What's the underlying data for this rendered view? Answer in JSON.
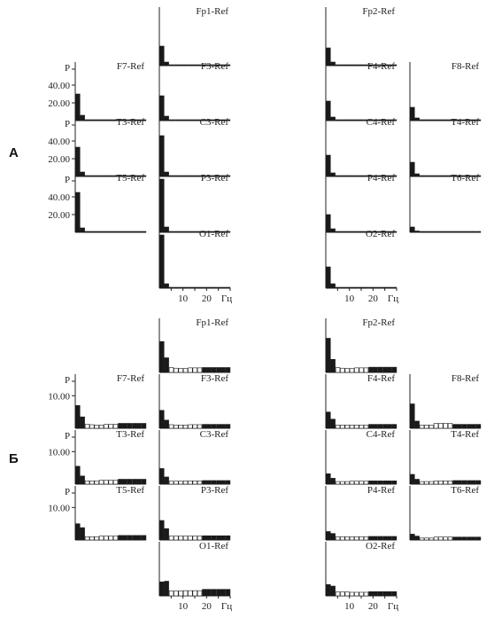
{
  "panels": {
    "A": {
      "label": "А",
      "y_axis_label": "P",
      "x_unit": "Гц",
      "x_ticks": [
        "10",
        "20"
      ],
      "y_ticks": [
        "40.00",
        "20.00"
      ]
    },
    "B": {
      "label": "Б",
      "y_axis_label": "P",
      "x_unit": "Гц",
      "x_ticks": [
        "10",
        "20"
      ],
      "y_ticks": [
        "10.00"
      ]
    }
  },
  "chart_data": [
    {
      "panel": "A",
      "type": "bar",
      "title": "",
      "xlabel": "Гц",
      "ylabel": "P",
      "ylim": [
        0,
        60
      ],
      "bin_hz": [
        2,
        4,
        6,
        8,
        10,
        12,
        14,
        16,
        18,
        20,
        22,
        24,
        26,
        28,
        30
      ],
      "band_fills": [
        "black",
        "black",
        "black",
        "black",
        "black",
        "black",
        "black",
        "black",
        "black",
        "black",
        "black",
        "black",
        "black",
        "black",
        "black"
      ],
      "channels": [
        {
          "name": "Fp1-Ref",
          "values": [
            22,
            4,
            1,
            0.5,
            0.5,
            0.5,
            0.5,
            0.5,
            0.5,
            0.5,
            0.5,
            0.5,
            0.5,
            0.5,
            0.5
          ]
        },
        {
          "name": "Fp2-Ref",
          "values": [
            20,
            4,
            1,
            1,
            0.5,
            0.5,
            0.5,
            0.5,
            0.5,
            0.5,
            0.5,
            0.5,
            0.5,
            0.5,
            0.5
          ]
        },
        {
          "name": "F7-Ref",
          "values": [
            30,
            6,
            1,
            0.5,
            0.5,
            0.5,
            0.5,
            0.5,
            0.5,
            0.5,
            0.5,
            0.5,
            0.5,
            0.5,
            0.5
          ]
        },
        {
          "name": "F3-Ref",
          "values": [
            28,
            5,
            1,
            0.5,
            0.5,
            0.5,
            0.5,
            0.5,
            0.5,
            0.5,
            0.5,
            0.5,
            0.5,
            0.5,
            0.5
          ]
        },
        {
          "name": "F4-Ref",
          "values": [
            22,
            4,
            1,
            0.5,
            0.5,
            0.5,
            0.5,
            0.5,
            0.5,
            0.5,
            0.5,
            0.5,
            0.5,
            0.5,
            0.5
          ]
        },
        {
          "name": "F8-Ref",
          "values": [
            15,
            3,
            1,
            0.5,
            0.5,
            0.5,
            0.5,
            0.5,
            0.5,
            0.5,
            0.5,
            0.5,
            0.5,
            0.5,
            0.5
          ]
        },
        {
          "name": "T3-Ref",
          "values": [
            33,
            5,
            1,
            0.5,
            0.5,
            0.5,
            0.5,
            0.5,
            0.5,
            0.5,
            0.5,
            0.5,
            0.5,
            0.5,
            0.5
          ]
        },
        {
          "name": "C3-Ref",
          "values": [
            46,
            5,
            1,
            0.5,
            0.5,
            0.5,
            0.5,
            0.5,
            0.5,
            0.5,
            0.5,
            0.5,
            0.5,
            0.5,
            0.5
          ]
        },
        {
          "name": "C4-Ref",
          "values": [
            24,
            4,
            1,
            0.5,
            0.5,
            0.5,
            0.5,
            0.5,
            0.5,
            0.5,
            0.5,
            0.5,
            0.5,
            0.5,
            0.5
          ]
        },
        {
          "name": "T4-Ref",
          "values": [
            16,
            3,
            1,
            0.5,
            0.5,
            0.5,
            0.5,
            0.5,
            0.5,
            0.5,
            0.5,
            0.5,
            0.5,
            0.5,
            0.5
          ]
        },
        {
          "name": "T5-Ref",
          "values": [
            45,
            5,
            1,
            0.5,
            0.5,
            0.5,
            0.5,
            0.5,
            0.5,
            0.5,
            0.5,
            0.5,
            0.5,
            0.5,
            0.5
          ]
        },
        {
          "name": "P3-Ref",
          "values": [
            60,
            6,
            1,
            0.5,
            0.5,
            0.5,
            0.5,
            0.5,
            0.5,
            0.5,
            0.5,
            0.5,
            0.5,
            0.5,
            0.5
          ]
        },
        {
          "name": "P4-Ref",
          "values": [
            20,
            4,
            1,
            0.5,
            0.5,
            0.5,
            0.5,
            0.5,
            0.5,
            0.5,
            0.5,
            0.5,
            0.5,
            0.5,
            0.5
          ]
        },
        {
          "name": "T6-Ref",
          "values": [
            6,
            1.5,
            1,
            0.5,
            0.5,
            0.5,
            0.5,
            0.5,
            0.5,
            0.5,
            0.5,
            0.5,
            0.5,
            0.5,
            0.5
          ]
        },
        {
          "name": "O1-Ref",
          "values": [
            60,
            5,
            1,
            0.5,
            0.5,
            0.5,
            0.5,
            0.5,
            0.5,
            0.5,
            0.5,
            0.5,
            0.5,
            0.5,
            0.5
          ]
        },
        {
          "name": "O2-Ref",
          "values": [
            24,
            5,
            1,
            0.5,
            0.5,
            0.5,
            0.5,
            0.5,
            0.5,
            0.5,
            0.5,
            0.5,
            0.5,
            0.5,
            0.5
          ]
        }
      ]
    },
    {
      "panel": "B",
      "type": "bar",
      "title": "",
      "xlabel": "Гц",
      "ylabel": "P",
      "ylim": [
        0,
        15
      ],
      "bin_hz": [
        2,
        4,
        6,
        8,
        10,
        12,
        14,
        16,
        18,
        20,
        22,
        24,
        26,
        28,
        30
      ],
      "band_fills": [
        "black",
        "black",
        "white",
        "white",
        "white",
        "white",
        "white",
        "white",
        "white",
        "black",
        "black",
        "black",
        "black",
        "black",
        "black"
      ],
      "channels": [
        {
          "name": "Fp1-Ref",
          "values": [
            9.5,
            4.5,
            1.5,
            1.3,
            1.2,
            1.2,
            1.4,
            1.4,
            1.4,
            1.5,
            1.5,
            1.5,
            1.5,
            1.5,
            1.5
          ]
        },
        {
          "name": "Fp2-Ref",
          "values": [
            10.5,
            4.0,
            1.5,
            1.3,
            1.2,
            1.2,
            1.4,
            1.4,
            1.4,
            1.6,
            1.6,
            1.6,
            1.6,
            1.6,
            1.6
          ]
        },
        {
          "name": "F7-Ref",
          "values": [
            7.0,
            3.5,
            1.2,
            1.1,
            1.0,
            1.0,
            1.2,
            1.2,
            1.2,
            1.5,
            1.5,
            1.5,
            1.5,
            1.5,
            1.5
          ]
        },
        {
          "name": "F3-Ref",
          "values": [
            5.5,
            2.5,
            1.1,
            1.0,
            1.0,
            1.0,
            1.1,
            1.1,
            1.1,
            1.2,
            1.2,
            1.2,
            1.2,
            1.2,
            1.2
          ]
        },
        {
          "name": "F4-Ref",
          "values": [
            5.0,
            2.8,
            1.0,
            1.0,
            1.0,
            1.0,
            1.0,
            1.0,
            1.0,
            1.2,
            1.2,
            1.2,
            1.2,
            1.2,
            1.2
          ]
        },
        {
          "name": "F8-Ref",
          "values": [
            7.5,
            2.2,
            1.0,
            1.0,
            1.0,
            1.5,
            1.5,
            1.5,
            1.5,
            1.2,
            1.2,
            1.2,
            1.2,
            1.2,
            1.2
          ]
        },
        {
          "name": "T3-Ref",
          "values": [
            5.5,
            2.5,
            1.0,
            1.0,
            1.0,
            1.2,
            1.2,
            1.2,
            1.2,
            1.5,
            1.5,
            1.5,
            1.5,
            1.5,
            1.5
          ]
        },
        {
          "name": "C3-Ref",
          "values": [
            4.8,
            2.2,
            0.9,
            0.9,
            0.9,
            1.0,
            1.0,
            1.0,
            1.0,
            1.1,
            1.1,
            1.1,
            1.1,
            1.1,
            1.1
          ]
        },
        {
          "name": "C4-Ref",
          "values": [
            3.2,
            1.8,
            0.8,
            0.8,
            0.8,
            0.9,
            0.9,
            0.9,
            0.9,
            1.0,
            1.0,
            1.0,
            1.0,
            1.0,
            1.0
          ]
        },
        {
          "name": "T4-Ref",
          "values": [
            3.0,
            1.5,
            0.8,
            0.8,
            0.8,
            1.0,
            1.0,
            1.0,
            1.0,
            1.1,
            1.1,
            1.1,
            1.1,
            1.1,
            1.1
          ]
        },
        {
          "name": "T5-Ref",
          "values": [
            5.0,
            3.8,
            1.0,
            1.0,
            1.0,
            1.2,
            1.2,
            1.2,
            1.2,
            1.4,
            1.4,
            1.4,
            1.4,
            1.4,
            1.4
          ]
        },
        {
          "name": "P3-Ref",
          "values": [
            6.0,
            3.5,
            1.2,
            1.2,
            1.2,
            1.2,
            1.2,
            1.2,
            1.2,
            1.3,
            1.3,
            1.3,
            1.3,
            1.3,
            1.3
          ]
        },
        {
          "name": "P4-Ref",
          "values": [
            2.6,
            2.0,
            1.0,
            1.0,
            1.0,
            1.0,
            1.0,
            1.0,
            1.0,
            1.1,
            1.1,
            1.1,
            1.1,
            1.1,
            1.1
          ]
        },
        {
          "name": "T6-Ref",
          "values": [
            1.8,
            1.2,
            0.6,
            0.6,
            0.6,
            0.9,
            0.9,
            0.9,
            0.9,
            0.9,
            0.9,
            0.9,
            0.9,
            0.9,
            0.9
          ]
        },
        {
          "name": "O1-Ref",
          "values": [
            4.3,
            4.5,
            1.5,
            1.5,
            1.5,
            1.6,
            1.6,
            1.6,
            1.6,
            2.0,
            2.0,
            2.0,
            2.0,
            2.0,
            2.0
          ]
        },
        {
          "name": "O2-Ref",
          "values": [
            3.5,
            3.0,
            1.2,
            1.2,
            1.2,
            1.1,
            1.1,
            1.1,
            1.1,
            1.3,
            1.3,
            1.3,
            1.3,
            1.3,
            1.3
          ]
        }
      ]
    }
  ]
}
